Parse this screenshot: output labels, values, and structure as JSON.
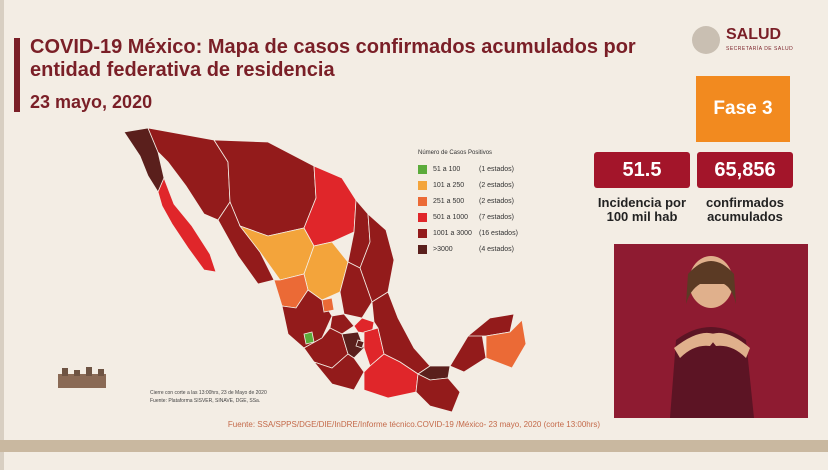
{
  "title": "COVID-19 México: Mapa de casos confirmados acumulados por entidad federativa de residencia",
  "date": "23 mayo, 2020",
  "logo": {
    "text": "SALUD",
    "sub": "SECRETARÍA DE SALUD"
  },
  "phase": "Fase 3",
  "stats": {
    "incidence_value": "51.5",
    "incidence_label": "Incidencia por 100 mil hab",
    "confirmed_value": "65,856",
    "confirmed_label": "confirmados acumulados"
  },
  "legend": {
    "title": "Número de Casos Positivos",
    "items": [
      {
        "range": "51 a 100",
        "count": "(1 estados)",
        "color": "#5bab3b"
      },
      {
        "range": "101 a 250",
        "count": "(2 estados)",
        "color": "#f3a43b"
      },
      {
        "range": "251 a 500",
        "count": "(2 estados)",
        "color": "#eb6a36"
      },
      {
        "range": "501 a 1000",
        "count": "(7 estados)",
        "color": "#e0262a"
      },
      {
        "range": "1001 a 3000",
        "count": "(16 estados)",
        "color": "#931b1b"
      },
      {
        "range": ">3000",
        "count": "(4 estados)",
        "color": "#5a1f1c"
      }
    ]
  },
  "notes": {
    "cutoff": "Cierre con corte a las 13:00hrs, 23 de Mayo de 2020",
    "source": "Fuente: Plataforma SISVER, SINAVE, DGE, SSa."
  },
  "footer": "Fuente: SSA/SPPS/DGE/DIE/InDRE/Informe técnico.COVID-19 /México- 23 mayo, 2020 (corte 13:00hrs)",
  "colors": {
    "brand": "#7a1f27",
    "phase": "#f28a1f",
    "stat": "#a3152a",
    "interpreter_bg": "#8e1b31"
  }
}
